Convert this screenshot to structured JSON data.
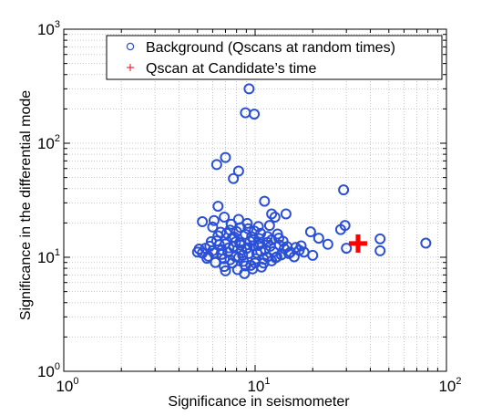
{
  "chart_data": {
    "type": "scatter",
    "xscale": "log",
    "yscale": "log",
    "xlim": [
      1,
      100
    ],
    "ylim": [
      1,
      1000
    ],
    "xlabel": "Significance in seismometer",
    "ylabel": "Significance in the differential mode",
    "grid": true,
    "legend_position": "top-right",
    "x_ticks": [
      {
        "base": "10",
        "exp": "0",
        "value": 1
      },
      {
        "base": "10",
        "exp": "1",
        "value": 10
      },
      {
        "base": "10",
        "exp": "2",
        "value": 100
      }
    ],
    "y_ticks": [
      {
        "base": "10",
        "exp": "0",
        "value": 1
      },
      {
        "base": "10",
        "exp": "1",
        "value": 10
      },
      {
        "base": "10",
        "exp": "2",
        "value": 100
      },
      {
        "base": "10",
        "exp": "3",
        "value": 1000
      }
    ],
    "series": [
      {
        "name": "Background (Qscans at random times)",
        "marker": "circle",
        "color": "#2b50d6",
        "points": [
          [
            9.3,
            300
          ],
          [
            8.9,
            185
          ],
          [
            9.9,
            180
          ],
          [
            7.0,
            75
          ],
          [
            6.3,
            65
          ],
          [
            8.2,
            57
          ],
          [
            7.7,
            49
          ],
          [
            29.0,
            39
          ],
          [
            11.2,
            31
          ],
          [
            6.4,
            28
          ],
          [
            12.2,
            24
          ],
          [
            14.5,
            24
          ],
          [
            12.7,
            22.5
          ],
          [
            6.9,
            22.5
          ],
          [
            6.1,
            21
          ],
          [
            8.2,
            21.5
          ],
          [
            5.3,
            20.5
          ],
          [
            29.5,
            19
          ],
          [
            28.0,
            17.5
          ],
          [
            19.5,
            16.7
          ],
          [
            21.5,
            14.7
          ],
          [
            45.0,
            14.5
          ],
          [
            24.0,
            13
          ],
          [
            30.0,
            12
          ],
          [
            45.0,
            11.4
          ],
          [
            78.0,
            13.3
          ],
          [
            20.0,
            10.4
          ],
          [
            16.3,
            12.2
          ],
          [
            17.0,
            11.5
          ],
          [
            15.0,
            10.8
          ],
          [
            14.2,
            11.9
          ],
          [
            13.4,
            12.8
          ],
          [
            13.0,
            10.1
          ],
          [
            12.2,
            9.3
          ],
          [
            11.6,
            13.5
          ],
          [
            11.1,
            8.9
          ],
          [
            10.7,
            11.3
          ],
          [
            10.4,
            12.7
          ],
          [
            10.1,
            9.7
          ],
          [
            9.8,
            14.3
          ],
          [
            9.5,
            8.5
          ],
          [
            9.3,
            10.8
          ],
          [
            9.1,
            12.1
          ],
          [
            8.9,
            15.9
          ],
          [
            8.7,
            9.2
          ],
          [
            8.5,
            11.6
          ],
          [
            8.3,
            13.4
          ],
          [
            8.1,
            7.8
          ],
          [
            7.9,
            10.1
          ],
          [
            7.7,
            12.4
          ],
          [
            7.6,
            14.8
          ],
          [
            7.4,
            9.5
          ],
          [
            7.2,
            11.1
          ],
          [
            7.0,
            13.1
          ],
          [
            6.9,
            8.3
          ],
          [
            6.7,
            10.6
          ],
          [
            6.5,
            12.9
          ],
          [
            6.4,
            15.4
          ],
          [
            6.2,
            9.0
          ],
          [
            6.0,
            11.4
          ],
          [
            5.9,
            13.7
          ],
          [
            5.7,
            10.2
          ],
          [
            5.5,
            12.0
          ],
          [
            5.3,
            10.9
          ],
          [
            5.1,
            11.8
          ],
          [
            5.0,
            11.1
          ],
          [
            9.9,
            17.0
          ],
          [
            10.7,
            16.2
          ],
          [
            8.4,
            18.2
          ],
          [
            7.4,
            17.3
          ],
          [
            9.1,
            19.8
          ],
          [
            11.6,
            15.2
          ],
          [
            12.2,
            14.2
          ],
          [
            6.6,
            16.6
          ],
          [
            8.8,
            7.2
          ],
          [
            9.7,
            7.9
          ],
          [
            7.0,
            7.6
          ],
          [
            10.8,
            8.2
          ],
          [
            11.6,
            10.1
          ],
          [
            12.5,
            11.2
          ],
          [
            13.7,
            10.5
          ],
          [
            14.7,
            12.4
          ],
          [
            8.2,
            9.9
          ],
          [
            9.4,
            13.8
          ],
          [
            7.8,
            15.0
          ],
          [
            10.2,
            10.9
          ],
          [
            6.7,
            11.6
          ],
          [
            7.3,
            12.1
          ],
          [
            8.6,
            10.4
          ],
          [
            9.0,
            11.9
          ],
          [
            9.8,
            12.6
          ],
          [
            10.6,
            13.1
          ],
          [
            11.3,
            11.7
          ],
          [
            12.0,
            12.5
          ],
          [
            6.1,
            10.9
          ],
          [
            5.6,
            9.8
          ],
          [
            6.9,
            9.7
          ],
          [
            7.6,
            8.9
          ],
          [
            8.9,
            8.4
          ],
          [
            10.0,
            8.9
          ],
          [
            11.1,
            9.6
          ],
          [
            12.8,
            9.9
          ],
          [
            15.3,
            11.1
          ],
          [
            16.0,
            10.1
          ],
          [
            18.0,
            11.1
          ],
          [
            17.4,
            12.6
          ],
          [
            8.4,
            12.8
          ],
          [
            7.9,
            13.6
          ],
          [
            9.6,
            15.1
          ],
          [
            10.5,
            14.6
          ],
          [
            6.3,
            13.9
          ],
          [
            5.8,
            12.5
          ],
          [
            7.1,
            16.2
          ],
          [
            8.0,
            16.8
          ],
          [
            9.2,
            17.8
          ],
          [
            10.4,
            18.6
          ],
          [
            7.5,
            19.5
          ],
          [
            6.0,
            18.4
          ],
          [
            11.9,
            19.0
          ],
          [
            13.1,
            16.0
          ],
          [
            14.0,
            13.8
          ],
          [
            13.3,
            14.7
          ]
        ]
      },
      {
        "name": "Qscan at Candidate’s time",
        "marker": "plus",
        "color": "#ff0000",
        "points": [
          [
            34.5,
            13.2
          ]
        ]
      }
    ]
  }
}
